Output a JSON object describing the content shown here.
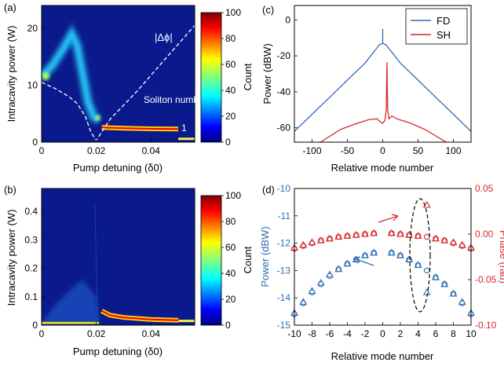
{
  "panels": {
    "a": {
      "letter": "(a)"
    },
    "b": {
      "letter": "(b)"
    },
    "c": {
      "letter": "(c)"
    },
    "d": {
      "letter": "(d)"
    }
  },
  "chart_data": [
    {
      "id": "a",
      "type": "heatmap",
      "xlabel": "Pump detuning (δ0)",
      "ylabel": "Intracavity power (W)",
      "xlim": [
        0,
        0.056
      ],
      "ylim": [
        0,
        24
      ],
      "xticks": [
        "0",
        "0.02",
        "0.04"
      ],
      "yticks": [
        "0",
        "10",
        "20"
      ],
      "colorbar": {
        "label": "Count",
        "ticks": [
          "0",
          "20",
          "40",
          "60",
          "80",
          "100"
        ],
        "range": [
          0,
          100
        ],
        "colormap": "jet"
      },
      "annotations": [
        "|Δϕ|",
        "Soliton number",
        "1"
      ],
      "traces": [
        {
          "name": "chaotic-band",
          "x": [
            0.0,
            0.004,
            0.008,
            0.011,
            0.013,
            0.015,
            0.017,
            0.019,
            0.021
          ],
          "y": [
            11.5,
            13.5,
            16.5,
            19.0,
            17.0,
            12.0,
            7.0,
            4.5,
            3.8
          ]
        },
        {
          "name": "soliton-step",
          "x": [
            0.022,
            0.03,
            0.04,
            0.05
          ],
          "y": [
            2.6,
            2.45,
            2.35,
            2.3
          ]
        },
        {
          "name": "cw-branch",
          "x": [
            0.05,
            0.056
          ],
          "y": [
            0.6,
            0.6
          ]
        },
        {
          "name": "phase-offset",
          "x": [
            0.0,
            0.005,
            0.01,
            0.013,
            0.016,
            0.018,
            0.02,
            0.025,
            0.035,
            0.045,
            0.056
          ],
          "y": [
            10.5,
            9.4,
            8.0,
            6.8,
            4.5,
            1.8,
            0.3,
            4.0,
            9.0,
            14.5,
            20.5
          ]
        }
      ]
    },
    {
      "id": "b",
      "type": "heatmap",
      "xlabel": "Pump detuning (δ0)",
      "ylabel": "Intracavity power (W)",
      "xlim": [
        0,
        0.056
      ],
      "ylim": [
        0,
        0.48
      ],
      "xticks": [
        "0",
        "0.02",
        "0.04"
      ],
      "yticks": [
        "0",
        "0.1",
        "0.2",
        "0.3",
        "0.4"
      ],
      "colorbar": {
        "label": "Count",
        "ticks": [
          "0",
          "20",
          "40",
          "60",
          "80",
          "100"
        ],
        "range": [
          0,
          100
        ],
        "colormap": "jet"
      },
      "traces": [
        {
          "name": "noise-cloud",
          "x": [
            0.0,
            0.005,
            0.01,
            0.015,
            0.02
          ],
          "y": [
            0.01,
            0.07,
            0.12,
            0.16,
            0.1
          ]
        },
        {
          "name": "soliton-step",
          "x": [
            0.022,
            0.025,
            0.03,
            0.04,
            0.05
          ],
          "y": [
            0.05,
            0.035,
            0.027,
            0.02,
            0.017
          ]
        },
        {
          "name": "cw-branch",
          "x": [
            0.05,
            0.056
          ],
          "y": [
            0.015,
            0.015
          ]
        }
      ]
    },
    {
      "id": "c",
      "type": "line",
      "xlabel": "Relative mode number",
      "ylabel": "Power (dBW)",
      "xlim": [
        -125,
        125
      ],
      "ylim": [
        -68,
        8
      ],
      "xticks": [
        "-100",
        "-50",
        "0",
        "50",
        "100"
      ],
      "yticks": [
        "-60",
        "-40",
        "-20",
        "0"
      ],
      "legend": "top-right",
      "series": [
        {
          "name": "FD",
          "color": "#2e6db4",
          "x": [
            -125,
            -100,
            -75,
            -50,
            -25,
            -5,
            0,
            0,
            0,
            5,
            25,
            50,
            75,
            100,
            125
          ],
          "y": [
            -62,
            -52.5,
            -43,
            -33.5,
            -24,
            -14,
            -13,
            -5,
            -13,
            -14,
            -24,
            -33.5,
            -43,
            -52.5,
            -62
          ]
        },
        {
          "name": "SH",
          "color": "#d42a2a",
          "x": [
            -88,
            -60,
            -40,
            -20,
            -8,
            -4,
            0,
            3,
            5,
            6,
            7,
            9,
            13,
            20,
            40,
            60,
            90
          ],
          "y": [
            -68,
            -61,
            -58,
            -55.5,
            -55,
            -56.5,
            -57.5,
            -56,
            -50,
            -23.5,
            -50,
            -55,
            -53.5,
            -55,
            -57.5,
            -61,
            -68
          ]
        }
      ]
    },
    {
      "id": "d",
      "type": "scatter",
      "xlabel": "Relative mode number",
      "ylabel": "Power (dBW)",
      "y2label": "Phase (rad)",
      "xlim": [
        -10,
        10
      ],
      "ylim": [
        -15,
        -10
      ],
      "y2lim": [
        -0.1,
        0.05
      ],
      "xticks": [
        "-10",
        "-8",
        "-6",
        "-4",
        "-2",
        "0",
        "2",
        "4",
        "6",
        "8",
        "10"
      ],
      "yticks": [
        "-15",
        "-14",
        "-13",
        "-12",
        "-11",
        "-10"
      ],
      "y2ticks": [
        "-0.10",
        "-0.05",
        "0.00",
        "0.05"
      ],
      "series": [
        {
          "name": "power-measured",
          "axis": "left",
          "marker": "triangle",
          "color": "#2e6db4",
          "x": [
            -10,
            -9,
            -8,
            -7,
            -6,
            -5,
            -4,
            -3,
            -2,
            -1,
            1,
            2,
            3,
            4,
            5,
            6,
            7,
            8,
            9,
            10
          ],
          "y": [
            -14.55,
            -14.15,
            -13.75,
            -13.45,
            -13.15,
            -12.95,
            -12.75,
            -12.6,
            -12.45,
            -12.35,
            -12.35,
            -12.45,
            -12.6,
            -12.8,
            -13.8,
            -13.25,
            -13.5,
            -13.85,
            -14.15,
            -14.55
          ]
        },
        {
          "name": "power-fit",
          "axis": "left",
          "marker": "circle",
          "color": "#2e6db4",
          "x": [
            -10,
            -9,
            -8,
            -7,
            -6,
            -5,
            -4,
            -3,
            -2,
            -1,
            1,
            2,
            3,
            4,
            5,
            6,
            7,
            8,
            9,
            10
          ],
          "y": [
            -14.6,
            -14.2,
            -13.8,
            -13.5,
            -13.2,
            -12.95,
            -12.75,
            -12.6,
            -12.45,
            -12.35,
            -12.35,
            -12.45,
            -12.6,
            -12.8,
            -13.0,
            -13.25,
            -13.5,
            -13.85,
            -14.2,
            -14.6
          ]
        },
        {
          "name": "phase-measured",
          "axis": "right",
          "marker": "triangle",
          "color": "#d42a2a",
          "x": [
            -10,
            -9,
            -8,
            -7,
            -6,
            -5,
            -4,
            -3,
            -2,
            -1,
            1,
            2,
            3,
            4,
            5,
            6,
            7,
            8,
            9,
            10
          ],
          "y": [
            -0.015,
            -0.012,
            -0.009,
            -0.007,
            -0.005,
            -0.003,
            -0.002,
            -0.001,
            0.0,
            0.001,
            0.001,
            0.0,
            -0.001,
            -0.002,
            0.032,
            -0.005,
            -0.007,
            -0.009,
            -0.012,
            -0.015
          ]
        },
        {
          "name": "phase-fit",
          "axis": "right",
          "marker": "circle",
          "color": "#d42a2a",
          "x": [
            -10,
            -9,
            -8,
            -7,
            -6,
            -5,
            -4,
            -3,
            -2,
            -1,
            1,
            2,
            3,
            4,
            5,
            6,
            7,
            8,
            9,
            10
          ],
          "y": [
            -0.016,
            -0.013,
            -0.01,
            -0.007,
            -0.005,
            -0.003,
            -0.002,
            -0.001,
            0.0,
            0.001,
            0.001,
            0.0,
            -0.001,
            -0.002,
            -0.003,
            -0.005,
            -0.007,
            -0.01,
            -0.013,
            -0.016
          ]
        }
      ],
      "annotations": [
        "dashed-ellipse-around-mode-5",
        "arrow-power-to-left-axis",
        "arrow-phase-to-right-axis"
      ]
    }
  ]
}
